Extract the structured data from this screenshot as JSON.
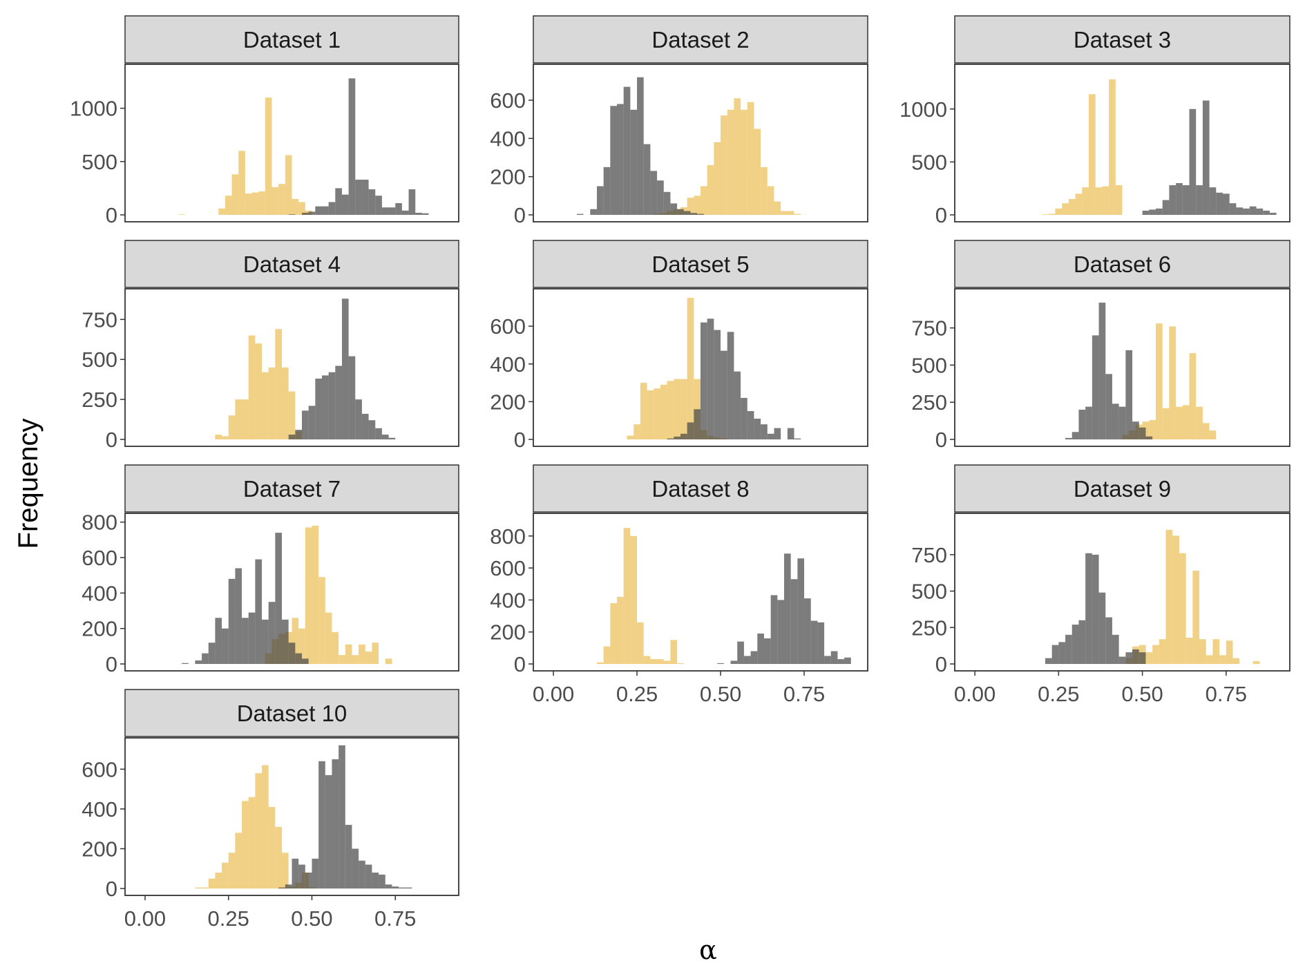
{
  "chart_data": {
    "type": "histogram",
    "facet": "wrap",
    "ylabel": "Frequency",
    "xlabel": "α",
    "xlim": [
      -0.06,
      0.94
    ],
    "x_ticks": [
      0,
      0.25,
      0.5,
      0.75
    ],
    "x_tick_labels": [
      "0.00",
      "0.25",
      "0.50",
      "0.75"
    ],
    "bin_width": 0.02,
    "colors": {
      "gray": "#4a4a4a",
      "gold": "#e8b53a",
      "strip_fill": "#d9d9d9",
      "panel_border": "#333333"
    },
    "series": [
      "gold",
      "gray"
    ],
    "panels": [
      {
        "title": "Dataset 1",
        "y_ticks": [
          0,
          500,
          1000
        ],
        "y_tick_labels": [
          "0",
          "500",
          "1000"
        ],
        "ymax": 1380,
        "gold": {
          "start": 0.1,
          "values": [
            5,
            0,
            0,
            0,
            0,
            0,
            60,
            180,
            380,
            600,
            200,
            210,
            220,
            1100,
            260,
            290,
            560,
            150,
            120,
            40,
            0
          ]
        },
        "gray": {
          "start": 0.43,
          "values": [
            5,
            0,
            20,
            30,
            80,
            80,
            120,
            250,
            190,
            1280,
            330,
            330,
            240,
            180,
            70,
            70,
            110,
            40,
            240,
            20,
            15
          ]
        }
      },
      {
        "title": "Dataset 2",
        "y_ticks": [
          0,
          200,
          400,
          600
        ],
        "y_tick_labels": [
          "0",
          "200",
          "400",
          "600"
        ],
        "ymax": 770,
        "gold": {
          "start": 0.3,
          "values": [
            5,
            10,
            20,
            30,
            40,
            90,
            100,
            150,
            260,
            380,
            520,
            550,
            610,
            550,
            590,
            450,
            250,
            150,
            70,
            20,
            20,
            5
          ]
        },
        "gray": {
          "start": 0.07,
          "values": [
            5,
            0,
            30,
            150,
            250,
            570,
            580,
            670,
            550,
            720,
            370,
            230,
            180,
            120,
            60,
            30,
            20,
            10,
            5
          ]
        }
      },
      {
        "title": "Dataset 3",
        "y_ticks": [
          0,
          500,
          1000
        ],
        "y_tick_labels": [
          "0",
          "500",
          "1000"
        ],
        "ymax": 1390,
        "gold": {
          "start": 0.2,
          "values": [
            5,
            10,
            60,
            110,
            150,
            200,
            260,
            1140,
            260,
            270,
            1280,
            280,
            0
          ]
        },
        "gray": {
          "start": 0.5,
          "values": [
            40,
            50,
            60,
            140,
            280,
            300,
            280,
            1000,
            280,
            1080,
            260,
            210,
            200,
            110,
            70,
            60,
            80,
            60,
            40,
            20
          ]
        }
      },
      {
        "title": "Dataset 4",
        "y_ticks": [
          0,
          250,
          500,
          750
        ],
        "y_tick_labels": [
          "0",
          "250",
          "500",
          "750"
        ],
        "ymax": 920,
        "gold": {
          "start": 0.21,
          "values": [
            30,
            20,
            150,
            250,
            250,
            650,
            600,
            420,
            450,
            690,
            450,
            300,
            50
          ]
        },
        "gray": {
          "start": 0.43,
          "values": [
            30,
            60,
            180,
            210,
            380,
            400,
            420,
            460,
            880,
            520,
            250,
            160,
            120,
            70,
            30,
            10
          ]
        }
      },
      {
        "title": "Dataset 5",
        "y_ticks": [
          0,
          200,
          400,
          600
        ],
        "y_tick_labels": [
          "0",
          "200",
          "400",
          "600"
        ],
        "ymax": 780,
        "gold": {
          "start": 0.22,
          "values": [
            20,
            80,
            300,
            260,
            270,
            290,
            310,
            320,
            320,
            750,
            320,
            50,
            20,
            10,
            5
          ]
        },
        "gray": {
          "start": 0.34,
          "values": [
            5,
            15,
            30,
            90,
            160,
            620,
            640,
            580,
            470,
            570,
            360,
            220,
            150,
            110,
            80,
            30,
            60,
            0,
            60,
            5
          ]
        }
      },
      {
        "title": "Dataset 6",
        "y_ticks": [
          0,
          250,
          500,
          750
        ],
        "y_tick_labels": [
          "0",
          "250",
          "500",
          "750"
        ],
        "ymax": 990,
        "gold": {
          "start": 0.44,
          "values": [
            30,
            60,
            100,
            120,
            130,
            780,
            210,
            760,
            220,
            230,
            580,
            220,
            110,
            60
          ]
        },
        "gray": {
          "start": 0.27,
          "values": [
            10,
            50,
            200,
            220,
            700,
            920,
            440,
            240,
            220,
            600,
            120,
            80,
            20
          ]
        }
      },
      {
        "title": "Dataset 7",
        "y_ticks": [
          0,
          200,
          400,
          600,
          800
        ],
        "y_tick_labels": [
          "0",
          "200",
          "400",
          "600",
          "800"
        ],
        "ymax": 830,
        "gold": {
          "start": 0.36,
          "values": [
            60,
            140,
            170,
            180,
            260,
            200,
            770,
            780,
            490,
            290,
            180,
            50,
            110,
            50,
            110,
            70,
            120,
            0,
            30
          ]
        },
        "gray": {
          "start": 0.11,
          "values": [
            5,
            0,
            20,
            60,
            120,
            260,
            200,
            480,
            540,
            260,
            290,
            590,
            250,
            350,
            740,
            250,
            120,
            60,
            30
          ]
        }
      },
      {
        "title": "Dataset 8",
        "y_ticks": [
          0,
          200,
          400,
          600,
          800
        ],
        "y_tick_labels": [
          "0",
          "200",
          "400",
          "600",
          "800"
        ],
        "ymax": 920,
        "gold": {
          "start": 0.13,
          "values": [
            10,
            110,
            380,
            420,
            850,
            800,
            260,
            50,
            30,
            30,
            20,
            150,
            5
          ]
        },
        "gray": {
          "start": 0.49,
          "values": [
            5,
            0,
            20,
            140,
            50,
            80,
            190,
            160,
            430,
            400,
            690,
            530,
            660,
            410,
            270,
            260,
            50,
            80,
            30,
            40
          ]
        }
      },
      {
        "title": "Dataset 9",
        "y_ticks": [
          0,
          250,
          500,
          750
        ],
        "y_tick_labels": [
          "0",
          "250",
          "500",
          "750"
        ],
        "ymax": 1010,
        "gold": {
          "start": 0.45,
          "values": [
            40,
            120,
            130,
            80,
            130,
            170,
            920,
            880,
            760,
            180,
            640,
            170,
            60,
            170,
            60,
            160,
            40,
            0,
            0,
            20
          ]
        },
        "gray": {
          "start": 0.21,
          "values": [
            40,
            130,
            150,
            200,
            270,
            300,
            760,
            750,
            490,
            320,
            200,
            50,
            80,
            100,
            80
          ]
        }
      },
      {
        "title": "Dataset 10",
        "y_ticks": [
          0,
          200,
          400,
          600
        ],
        "y_tick_labels": [
          "0",
          "200",
          "400",
          "600"
        ],
        "ymax": 740,
        "gold": {
          "start": 0.15,
          "values": [
            5,
            5,
            50,
            80,
            130,
            180,
            280,
            440,
            460,
            580,
            620,
            410,
            310,
            180,
            10,
            30,
            80,
            5
          ]
        },
        "gray": {
          "start": 0.4,
          "values": [
            5,
            20,
            150,
            120,
            80,
            150,
            640,
            570,
            650,
            720,
            320,
            200,
            140,
            120,
            80,
            70,
            20,
            10,
            5,
            5
          ]
        }
      }
    ]
  }
}
